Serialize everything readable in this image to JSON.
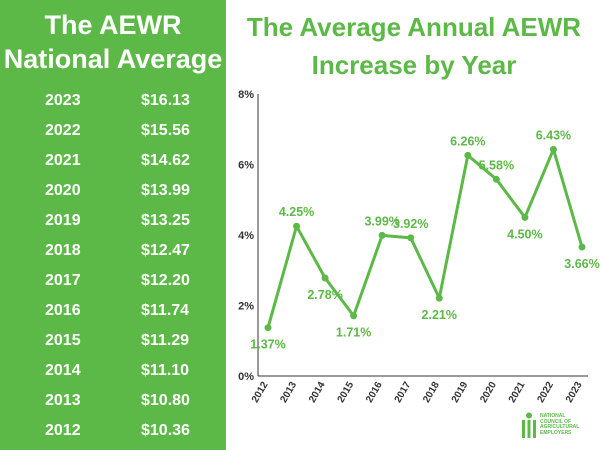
{
  "left": {
    "title_line1": "The AEWR",
    "title_line2": "National Average",
    "rates": [
      {
        "year": "2023",
        "value": "$16.13"
      },
      {
        "year": "2022",
        "value": "$15.56"
      },
      {
        "year": "2021",
        "value": "$14.62"
      },
      {
        "year": "2020",
        "value": "$13.99"
      },
      {
        "year": "2019",
        "value": "$13.25"
      },
      {
        "year": "2018",
        "value": "$12.47"
      },
      {
        "year": "2017",
        "value": "$12.20"
      },
      {
        "year": "2016",
        "value": "$11.74"
      },
      {
        "year": "2015",
        "value": "$11.29"
      },
      {
        "year": "2014",
        "value": "$11.10"
      },
      {
        "year": "2013",
        "value": "$10.80"
      },
      {
        "year": "2012",
        "value": "$10.36"
      }
    ]
  },
  "right": {
    "title_line1": "The Average Annual AEWR",
    "title_line2": "Increase by Year"
  },
  "logo": {
    "line1": "NATIONAL",
    "line2": "COUNCIL OF",
    "line3": "AGRICULTURAL",
    "line4": "EMPLOYERS"
  },
  "colors": {
    "brand_green": "#5cb947",
    "white": "#ffffff"
  },
  "chart_data": {
    "type": "line",
    "title": "The Average Annual AEWR Increase by Year",
    "xlabel": "",
    "ylabel": "",
    "categories": [
      "2012",
      "2013",
      "2014",
      "2015",
      "2016",
      "2017",
      "2018",
      "2019",
      "2020",
      "2021",
      "2022",
      "2023"
    ],
    "values": [
      1.37,
      4.25,
      2.78,
      1.71,
      3.99,
      3.92,
      2.21,
      6.26,
      5.58,
      4.5,
      6.43,
      3.66
    ],
    "labels": [
      "1.37%",
      "4.25%",
      "2.78%",
      "1.71%",
      "3.99%",
      "3.92%",
      "2.21%",
      "6.26%",
      "5.58%",
      "4.50%",
      "6.43%",
      "3.66%"
    ],
    "label_positions": [
      "below",
      "above",
      "below",
      "below",
      "above",
      "above",
      "below",
      "above",
      "above",
      "below",
      "above",
      "below"
    ],
    "ylim": [
      0,
      8
    ],
    "yticks": [
      0,
      2,
      4,
      6,
      8
    ],
    "ytick_labels": [
      "0%",
      "2%",
      "4%",
      "6%",
      "8%"
    ],
    "grid": false,
    "legend": "none",
    "color": "#5cb947"
  }
}
